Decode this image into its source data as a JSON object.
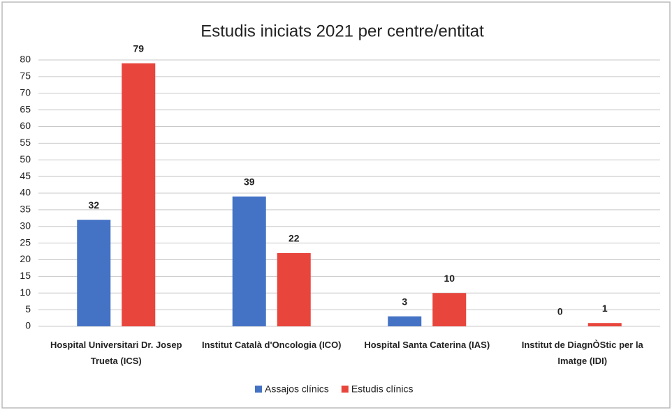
{
  "chart_data": {
    "type": "bar",
    "title": "Estudis iniciats 2021 per centre/entitat",
    "categories": [
      "Hospital Universitari Dr. Josep Trueta (ICS)",
      "Institut Català d'Oncologia (ICO)",
      "Hospital Santa Caterina (IAS)",
      "Institut de DiagnÒStic per la Imatge (IDI)"
    ],
    "series": [
      {
        "name": "Assajos clínics",
        "color": "#4472c4",
        "values": [
          32,
          39,
          3,
          0
        ]
      },
      {
        "name": "Estudis clínics",
        "color": "#e8453c",
        "values": [
          79,
          22,
          10,
          1
        ]
      }
    ],
    "ylim": [
      0,
      80
    ],
    "yticks": [
      0,
      5,
      10,
      15,
      20,
      25,
      30,
      35,
      40,
      45,
      50,
      55,
      60,
      65,
      70,
      75,
      80
    ],
    "grid": true,
    "legend": "bottom"
  }
}
